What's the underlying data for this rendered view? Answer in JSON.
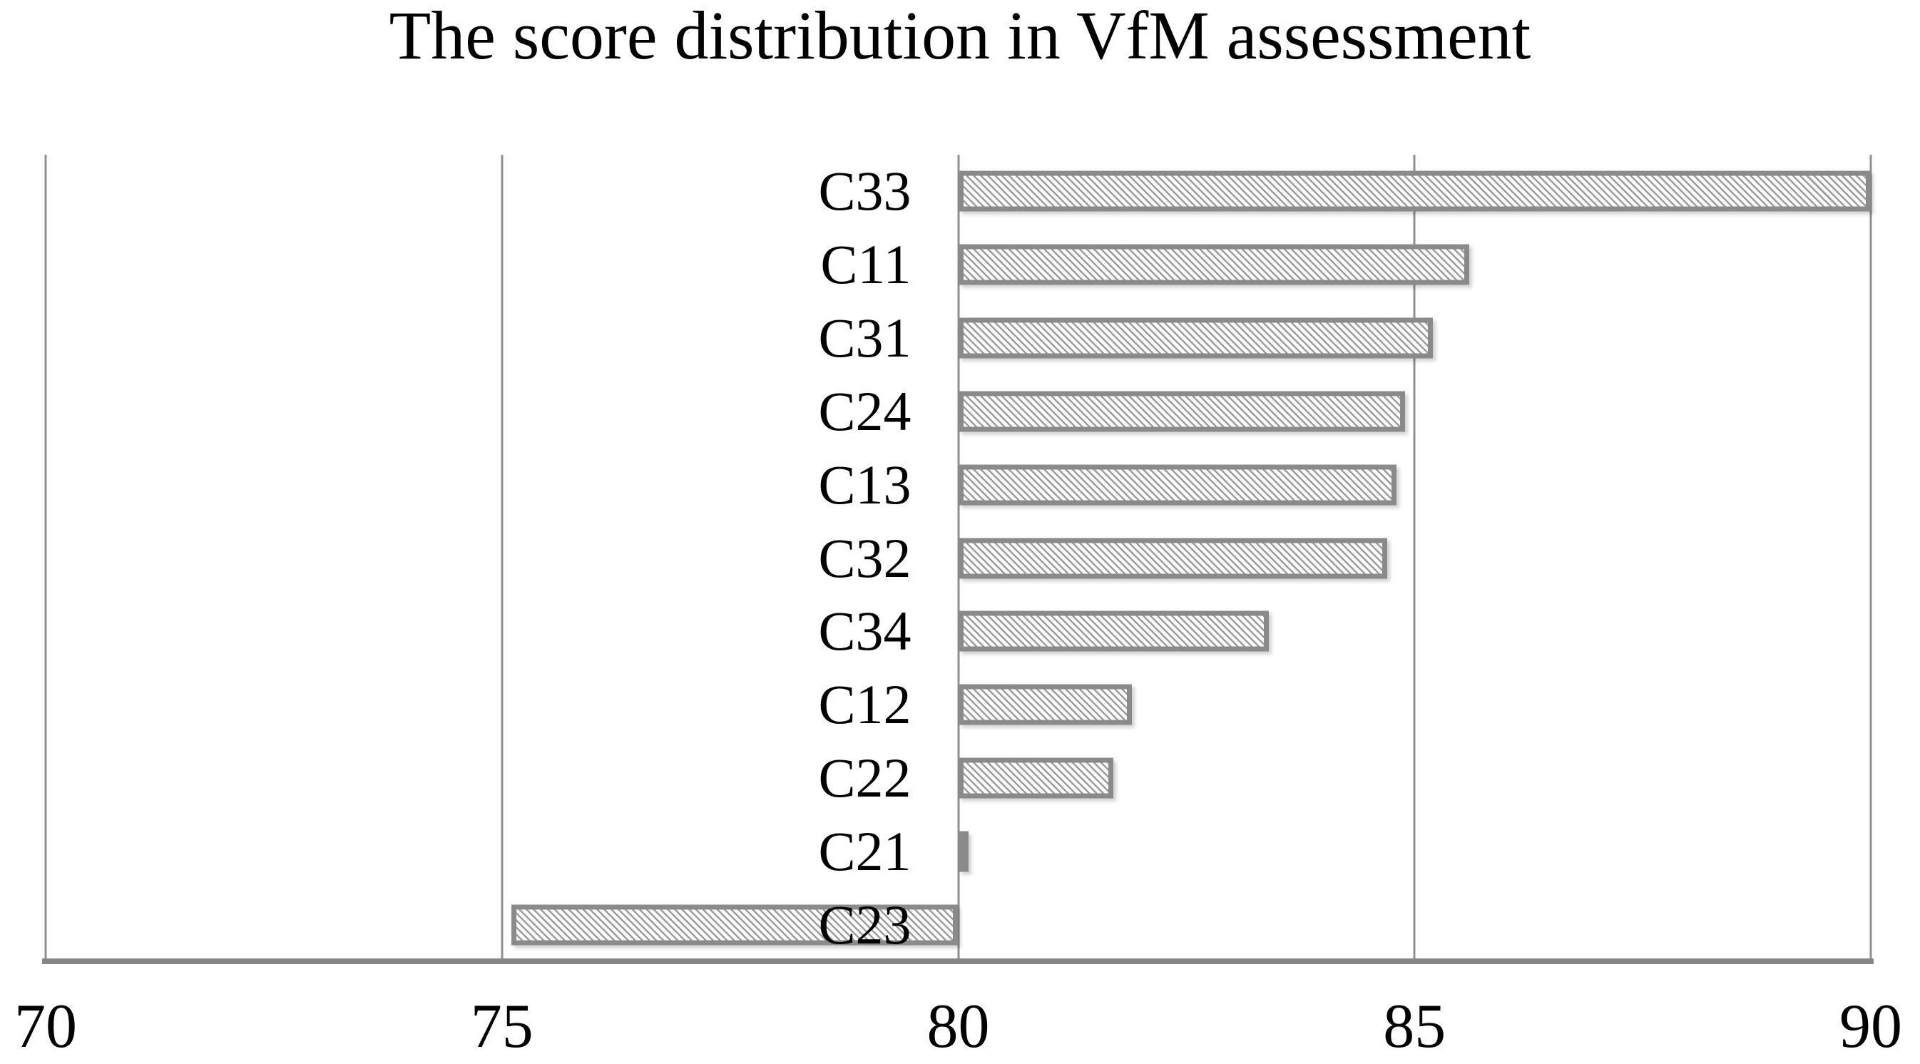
{
  "title": "The score distribution in VfM assessment",
  "chart_data": {
    "type": "bar",
    "orientation": "horizontal",
    "title": "The score distribution in VfM assessment",
    "categories": [
      "C33",
      "C11",
      "C31",
      "C24",
      "C13",
      "C32",
      "C34",
      "C12",
      "C22",
      "C21",
      "C23"
    ],
    "values": [
      90.0,
      85.6,
      85.2,
      84.9,
      84.8,
      84.7,
      83.4,
      81.9,
      81.7,
      80.1,
      75.1
    ],
    "xlabel": "",
    "ylabel": "",
    "xlim": [
      70,
      90
    ],
    "x_ticks": [
      70,
      75,
      80,
      85,
      90
    ],
    "bar_baseline": 80,
    "grid": "vertical gridlines at each x tick",
    "legend": "none",
    "bar_style": "diagonal-hatch"
  },
  "colors": {
    "background": "#ffffff",
    "text": "#000000",
    "bar_border": "#8a8a8a",
    "hatch_line": "#9c9c9c",
    "hatch_background": "#ffffff",
    "gridline": "#8f8f8f",
    "axis_line": "#858585"
  }
}
